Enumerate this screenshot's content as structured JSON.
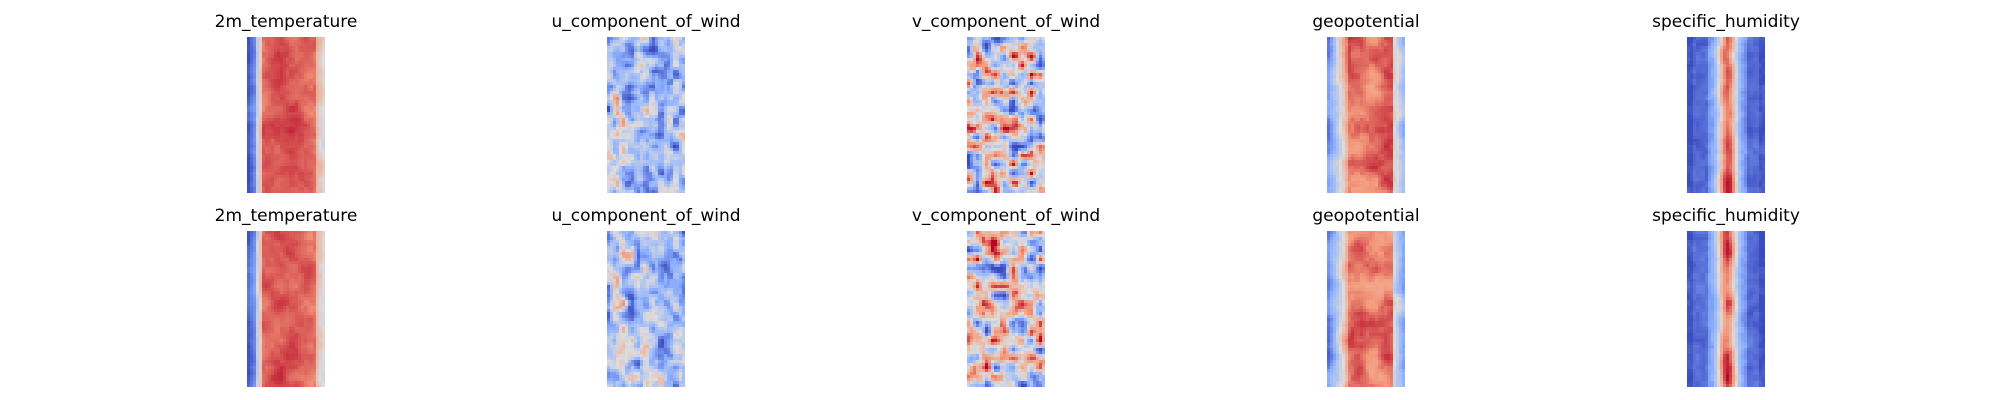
{
  "chart_data": {
    "type": "heatmap",
    "layout": {
      "rows": 2,
      "cols": 5
    },
    "colormap": "coolwarm",
    "colormap_stops": [
      "#3b4cc0",
      "#8db0fe",
      "#dddddd",
      "#f49a7b",
      "#b40426"
    ],
    "axes_visible": false,
    "panels": [
      {
        "title": "2m_temperature",
        "pattern": "temperature",
        "seed": 11
      },
      {
        "title": "u_component_of_wind",
        "pattern": "uwind",
        "seed": 23
      },
      {
        "title": "v_component_of_wind",
        "pattern": "vwind",
        "seed": 37
      },
      {
        "title": "geopotential",
        "pattern": "geopotential",
        "seed": 41
      },
      {
        "title": "specific_humidity",
        "pattern": "humidity",
        "seed": 53
      },
      {
        "title": "2m_temperature",
        "pattern": "temperature",
        "seed": 67
      },
      {
        "title": "u_component_of_wind",
        "pattern": "uwind",
        "seed": 71
      },
      {
        "title": "v_component_of_wind",
        "pattern": "vwind",
        "seed": 83
      },
      {
        "title": "geopotential",
        "pattern": "geopotential",
        "seed": 97
      },
      {
        "title": "specific_humidity",
        "pattern": "humidity",
        "seed": 101
      }
    ]
  }
}
